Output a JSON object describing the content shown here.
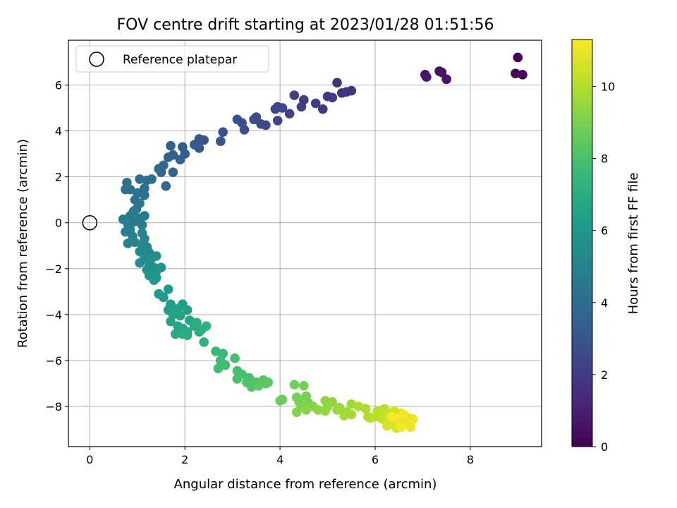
{
  "chart_data": {
    "type": "scatter",
    "title": "FOV centre drift starting at 2023/01/28 01:51:56",
    "xlabel": "Angular distance from reference (arcmin)",
    "ylabel": "Rotation from reference (arcmin)",
    "xlim": [
      -0.45,
      9.5
    ],
    "ylim": [
      -9.75,
      7.95
    ],
    "xticks": [
      0,
      2,
      4,
      6,
      8
    ],
    "yticks": [
      -8,
      -6,
      -4,
      -2,
      0,
      2,
      4,
      6
    ],
    "grid": true,
    "legend": {
      "placement": "top-left",
      "entries": [
        "Reference platepar"
      ]
    },
    "reference_point": {
      "x": 0,
      "y": 0,
      "label": "Reference platepar"
    },
    "colorbar": {
      "label": "Hours from first FF file",
      "colormap": "viridis",
      "range": [
        0,
        11.3
      ],
      "ticks": [
        0,
        2,
        4,
        6,
        8,
        10
      ]
    },
    "colormap_stops": [
      "#440154",
      "#482878",
      "#3e4989",
      "#31688e",
      "#26828e",
      "#1f9e89",
      "#35b779",
      "#6ece58",
      "#b5de2b",
      "#fde725"
    ],
    "points": [
      [
        9.0,
        7.2,
        0.0
      ],
      [
        8.95,
        6.5,
        0.1
      ],
      [
        9.1,
        6.45,
        0.15
      ],
      [
        7.4,
        6.55,
        0.5
      ],
      [
        7.35,
        6.6,
        0.55
      ],
      [
        7.5,
        6.25,
        0.6
      ],
      [
        7.05,
        6.45,
        0.7
      ],
      [
        7.08,
        6.35,
        0.75
      ],
      [
        5.2,
        6.1,
        1.6
      ],
      [
        5.5,
        5.75,
        1.7
      ],
      [
        5.4,
        5.7,
        1.75
      ],
      [
        5.3,
        5.65,
        1.8
      ],
      [
        5.0,
        5.5,
        1.9
      ],
      [
        4.9,
        4.95,
        1.95
      ],
      [
        5.1,
        5.45,
        2.0
      ],
      [
        4.75,
        5.2,
        2.05
      ],
      [
        4.5,
        5.35,
        2.1
      ],
      [
        4.45,
        5.05,
        2.15
      ],
      [
        4.3,
        5.55,
        2.2
      ],
      [
        4.2,
        4.75,
        2.25
      ],
      [
        4.05,
        5.0,
        2.3
      ],
      [
        3.95,
        5.05,
        2.35
      ],
      [
        3.9,
        4.95,
        2.4
      ],
      [
        3.95,
        4.45,
        2.45
      ],
      [
        3.7,
        4.25,
        2.5
      ],
      [
        3.6,
        4.3,
        2.55
      ],
      [
        3.5,
        4.6,
        2.6
      ],
      [
        3.45,
        4.5,
        2.65
      ],
      [
        3.25,
        4.05,
        2.7
      ],
      [
        3.2,
        4.35,
        2.75
      ],
      [
        3.1,
        4.5,
        2.8
      ],
      [
        2.8,
        3.95,
        2.9
      ],
      [
        2.75,
        3.55,
        2.95
      ],
      [
        2.4,
        3.6,
        3.0
      ],
      [
        2.3,
        3.65,
        3.05
      ],
      [
        2.3,
        3.25,
        3.1
      ],
      [
        2.2,
        3.4,
        3.15
      ],
      [
        2.0,
        3.0,
        3.25
      ],
      [
        1.95,
        3.3,
        3.3
      ],
      [
        1.9,
        2.75,
        3.35
      ],
      [
        1.7,
        3.35,
        3.4
      ],
      [
        1.75,
        2.95,
        3.45
      ],
      [
        1.65,
        2.85,
        3.5
      ],
      [
        1.75,
        2.2,
        3.6
      ],
      [
        1.55,
        2.5,
        3.65
      ],
      [
        1.5,
        2.2,
        3.7
      ],
      [
        1.6,
        1.6,
        3.75
      ],
      [
        1.45,
        2.35,
        3.8
      ],
      [
        1.3,
        1.9,
        3.85
      ],
      [
        1.2,
        1.85,
        3.9
      ],
      [
        1.05,
        1.9,
        4.0
      ],
      [
        1.15,
        1.5,
        4.05
      ],
      [
        0.78,
        1.75,
        4.1
      ],
      [
        0.75,
        1.45,
        4.15
      ],
      [
        0.85,
        1.45,
        4.2
      ],
      [
        1.15,
        1.2,
        4.25
      ],
      [
        1.0,
        1.3,
        4.3
      ],
      [
        0.95,
        1.0,
        4.35
      ],
      [
        1.05,
        0.85,
        4.4
      ],
      [
        0.98,
        0.6,
        4.45
      ],
      [
        1.15,
        0.3,
        4.5
      ],
      [
        0.92,
        0.5,
        4.55
      ],
      [
        1.05,
        0.2,
        4.6
      ],
      [
        0.85,
        0.3,
        4.65
      ],
      [
        0.7,
        0.15,
        4.7
      ],
      [
        0.95,
        0.05,
        4.75
      ],
      [
        0.8,
        -0.05,
        4.8
      ],
      [
        1.1,
        -0.1,
        4.85
      ],
      [
        0.85,
        -0.3,
        4.9
      ],
      [
        0.75,
        -0.4,
        4.95
      ],
      [
        1.1,
        -0.45,
        5.0
      ],
      [
        0.9,
        -0.6,
        5.05
      ],
      [
        1.15,
        -0.7,
        5.1
      ],
      [
        0.8,
        -0.9,
        5.15
      ],
      [
        0.95,
        -0.85,
        5.2
      ],
      [
        1.1,
        -0.95,
        5.25
      ],
      [
        1.2,
        -1.05,
        5.3
      ],
      [
        1.05,
        -1.25,
        5.35
      ],
      [
        1.25,
        -1.3,
        5.4
      ],
      [
        1.15,
        -1.5,
        5.45
      ],
      [
        1.3,
        -1.55,
        5.5
      ],
      [
        1.05,
        -1.75,
        5.55
      ],
      [
        1.25,
        -1.8,
        5.6
      ],
      [
        1.4,
        -1.45,
        5.65
      ],
      [
        1.35,
        -1.95,
        5.7
      ],
      [
        1.2,
        -2.05,
        5.75
      ],
      [
        1.4,
        -2.1,
        5.8
      ],
      [
        1.5,
        -1.95,
        5.85
      ],
      [
        1.25,
        -2.3,
        5.9
      ],
      [
        1.4,
        -2.4,
        5.95
      ],
      [
        1.35,
        -2.5,
        6.0
      ],
      [
        1.65,
        -2.9,
        6.1
      ],
      [
        1.45,
        -3.1,
        6.15
      ],
      [
        1.55,
        -3.25,
        6.2
      ],
      [
        1.7,
        -3.55,
        6.25
      ],
      [
        1.65,
        -3.8,
        6.3
      ],
      [
        1.95,
        -3.55,
        6.35
      ],
      [
        1.85,
        -3.75,
        6.4
      ],
      [
        2.05,
        -3.8,
        6.45
      ],
      [
        1.75,
        -4.0,
        6.5
      ],
      [
        1.9,
        -4.05,
        6.55
      ],
      [
        1.7,
        -4.3,
        6.6
      ],
      [
        2.1,
        -4.25,
        6.65
      ],
      [
        1.85,
        -4.5,
        6.7
      ],
      [
        1.95,
        -4.6,
        6.75
      ],
      [
        2.05,
        -4.75,
        6.8
      ],
      [
        1.8,
        -4.85,
        6.85
      ],
      [
        2.2,
        -4.5,
        6.9
      ],
      [
        2.3,
        -4.75,
        6.95
      ],
      [
        2.05,
        -4.9,
        7.0
      ],
      [
        1.95,
        -4.85,
        7.05
      ],
      [
        2.25,
        -4.35,
        7.1
      ],
      [
        2.35,
        -4.65,
        7.15
      ],
      [
        2.45,
        -4.5,
        7.25
      ],
      [
        2.4,
        -5.2,
        7.3
      ],
      [
        2.65,
        -5.6,
        7.6
      ],
      [
        2.8,
        -5.7,
        7.65
      ],
      [
        2.75,
        -6.0,
        7.7
      ],
      [
        2.85,
        -6.2,
        7.75
      ],
      [
        2.7,
        -6.35,
        7.8
      ],
      [
        3.05,
        -5.9,
        7.85
      ],
      [
        3.1,
        -6.45,
        7.9
      ],
      [
        3.2,
        -6.6,
        7.95
      ],
      [
        3.1,
        -6.8,
        8.0
      ],
      [
        3.35,
        -6.75,
        8.05
      ],
      [
        3.3,
        -6.95,
        8.1
      ],
      [
        3.5,
        -6.95,
        8.15
      ],
      [
        3.4,
        -7.15,
        8.2
      ],
      [
        3.65,
        -6.85,
        8.25
      ],
      [
        3.7,
        -7.0,
        8.3
      ],
      [
        3.55,
        -7.1,
        8.35
      ],
      [
        3.75,
        -6.95,
        8.4
      ],
      [
        4.0,
        -7.75,
        8.7
      ],
      [
        4.05,
        -7.7,
        8.75
      ],
      [
        4.3,
        -7.05,
        8.8
      ],
      [
        4.5,
        -7.1,
        8.85
      ],
      [
        4.35,
        -7.6,
        8.9
      ],
      [
        4.55,
        -7.55,
        8.95
      ],
      [
        4.4,
        -7.8,
        9.0
      ],
      [
        4.6,
        -7.85,
        9.05
      ],
      [
        4.45,
        -8.0,
        9.1
      ],
      [
        4.35,
        -8.25,
        9.15
      ],
      [
        4.7,
        -8.0,
        9.2
      ],
      [
        4.55,
        -8.15,
        9.25
      ],
      [
        4.8,
        -8.15,
        9.3
      ],
      [
        4.95,
        -7.75,
        9.35
      ],
      [
        5.0,
        -8.0,
        9.4
      ],
      [
        5.1,
        -7.8,
        9.45
      ],
      [
        4.95,
        -8.2,
        9.5
      ],
      [
        5.2,
        -8.15,
        9.55
      ],
      [
        5.25,
        -8.05,
        9.6
      ],
      [
        5.4,
        -8.25,
        9.65
      ],
      [
        5.5,
        -7.9,
        9.7
      ],
      [
        5.35,
        -8.4,
        9.75
      ],
      [
        5.5,
        -8.35,
        9.8
      ],
      [
        5.65,
        -8.0,
        9.85
      ],
      [
        5.8,
        -8.1,
        9.9
      ],
      [
        5.85,
        -8.45,
        9.95
      ],
      [
        5.9,
        -8.5,
        10.0
      ],
      [
        6.05,
        -8.2,
        10.1
      ],
      [
        6.1,
        -8.35,
        10.15
      ],
      [
        6.0,
        -8.45,
        10.2
      ],
      [
        6.2,
        -8.1,
        10.25
      ],
      [
        6.15,
        -8.55,
        10.3
      ],
      [
        6.3,
        -8.3,
        10.4
      ],
      [
        6.25,
        -8.6,
        10.45
      ],
      [
        6.4,
        -8.2,
        10.5
      ],
      [
        6.35,
        -8.75,
        10.55
      ],
      [
        6.5,
        -8.45,
        10.6
      ],
      [
        6.25,
        -8.85,
        10.65
      ],
      [
        6.45,
        -8.95,
        10.7
      ],
      [
        6.55,
        -8.3,
        10.75
      ],
      [
        6.6,
        -8.6,
        10.8
      ],
      [
        6.5,
        -8.8,
        10.85
      ],
      [
        6.7,
        -8.5,
        10.9
      ],
      [
        6.65,
        -8.7,
        10.95
      ],
      [
        6.75,
        -8.9,
        11.0
      ],
      [
        6.8,
        -8.55,
        11.05
      ],
      [
        6.45,
        -8.5,
        11.1
      ],
      [
        6.6,
        -8.35,
        11.15
      ],
      [
        6.55,
        -8.9,
        11.2
      ],
      [
        6.35,
        -8.45,
        11.25
      ]
    ]
  }
}
